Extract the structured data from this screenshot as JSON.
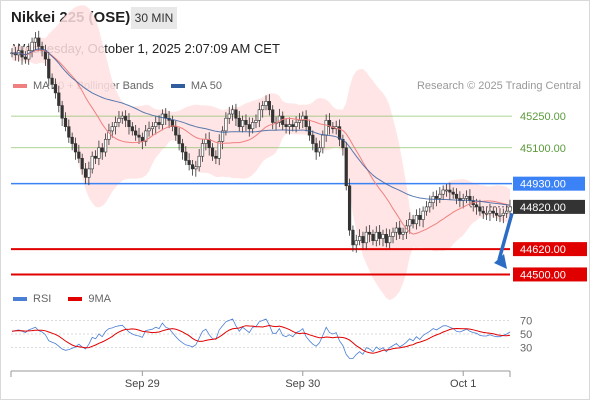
{
  "header": {
    "instrument": "Nikkei 225 (OSE)",
    "timeframe": "30 MIN",
    "datetime": "Wednesday, October 1, 2025 2:07:09 AM CET"
  },
  "legend": {
    "ma20_label": "MA 20 + Bollinger Bands",
    "ma20_color": "#f08080",
    "ma50_label": "MA 50",
    "ma50_color": "#2f5d9e",
    "credit": "Research © 2025 Trading Central"
  },
  "rsi_legend": {
    "rsi_label": "RSI",
    "rsi_color": "#4a7fd6",
    "ma9_label": "9MA",
    "ma9_color": "#e00000"
  },
  "chart_data": {
    "type": "candlestick",
    "y_range": [
      44450,
      45350
    ],
    "x_ticks": [
      {
        "label": "Sep 29",
        "index": 39
      },
      {
        "label": "Sep 30",
        "index": 87
      },
      {
        "label": "Oct 1",
        "index": 135
      }
    ],
    "levels": [
      {
        "value": 45250.0,
        "label": "45250.00",
        "kind": "resistance",
        "color": "#8fc46e"
      },
      {
        "value": 45100.0,
        "label": "45100.00",
        "kind": "resistance",
        "color": "#8fc46e"
      },
      {
        "value": 44930.0,
        "label": "44930.00",
        "kind": "pivot",
        "color": "#3b82f6"
      },
      {
        "value": 44820.0,
        "label": "44820.00",
        "kind": "last",
        "color": "#333333"
      },
      {
        "value": 44620.0,
        "label": "44620.00",
        "kind": "support",
        "color": "#e00000"
      },
      {
        "value": 44500.0,
        "label": "44500.00",
        "kind": "support",
        "color": "#e00000"
      }
    ],
    "close": [
      45550,
      45540,
      45560,
      45530,
      45520,
      45560,
      45600,
      45620,
      45580,
      45560,
      45520,
      45430,
      45400,
      45360,
      45300,
      45240,
      45200,
      45150,
      45120,
      45080,
      45050,
      45000,
      44960,
      45000,
      45060,
      45050,
      45100,
      45080,
      45140,
      45180,
      45200,
      45220,
      45240,
      45250,
      45230,
      45200,
      45180,
      45160,
      45150,
      45130,
      45180,
      45190,
      45200,
      45220,
      45210,
      45260,
      45240,
      45230,
      45200,
      45160,
      45120,
      45080,
      45040,
      45020,
      45000,
      45010,
      45060,
      45120,
      45140,
      45100,
      45060,
      45050,
      45130,
      45180,
      45240,
      45260,
      45280,
      45240,
      45200,
      45230,
      45210,
      45190,
      45220,
      45230,
      45280,
      45300,
      45320,
      45280,
      45220,
      45220,
      45250,
      45210,
      45200,
      45210,
      45200,
      45220,
      45230,
      45250,
      45200,
      45160,
      45120,
      45080,
      45100,
      45160,
      45230,
      45200,
      45190,
      45200,
      45140,
      45100,
      44920,
      44710,
      44640,
      44660,
      44680,
      44650,
      44700,
      44690,
      44660,
      44700,
      44670,
      44690,
      44650,
      44680,
      44700,
      44720,
      44690,
      44700,
      44730,
      44760,
      44740,
      44780,
      44760,
      44800,
      44820,
      44840,
      44870,
      44860,
      44880,
      44900,
      44900,
      44890,
      44880,
      44860,
      44850,
      44860,
      44870,
      44850,
      44830,
      44820,
      44800,
      44790,
      44790,
      44800,
      44790,
      44780,
      44780,
      44790,
      44800,
      44820
    ],
    "ma50": [
      45550,
      45545,
      45550,
      45545,
      45540,
      45548,
      45555,
      45565,
      45568,
      45568,
      45562,
      45548,
      45533,
      45518,
      45500,
      45480,
      45462,
      45445,
      45430,
      45418,
      45405,
      45392,
      45380,
      45370,
      45360,
      45352,
      45345,
      45338,
      45332,
      45328,
      45324,
      45320,
      45316,
      45312,
      45306,
      45300,
      45293,
      45286,
      45278,
      45270,
      45264,
      45259,
      45254,
      45250,
      45246,
      45243,
      45240,
      45237,
      45234,
      45230,
      45226,
      45221,
      45216,
      45210,
      45205,
      45200,
      45196,
      45193,
      45190,
      45186,
      45182,
      45178,
      45176,
      45174,
      45174,
      45175,
      45176,
      45176,
      45176,
      45176,
      45176,
      45175,
      45175,
      45176,
      45178,
      45180,
      45182,
      45183,
      45183,
      45183,
      45184,
      45184,
      45184,
      45183,
      45183,
      45183,
      45183,
      45184,
      45182,
      45180,
      45176,
      45170,
      45165,
      45162,
      45160,
      45158,
      45156,
      45152,
      45146,
      45138,
      45124,
      45104,
      45082,
      45060,
      45040,
      45020,
      45002,
      44986,
      44970,
      44958,
      44948,
      44938,
      44928,
      44920,
      44912,
      44905,
      44898,
      44890,
      44882,
      44876,
      44870,
      44866,
      44862,
      44860,
      44858,
      44857,
      44856,
      44855,
      44855,
      44855,
      44855,
      44854,
      44853,
      44852,
      44852,
      44851,
      44851,
      44850,
      44849,
      44848,
      44846,
      44844,
      44842,
      44840,
      44838,
      44836,
      44834,
      44832,
      44830,
      44828
    ],
    "rsi": [
      54,
      55,
      56,
      54,
      52,
      56,
      58,
      60,
      55,
      53,
      49,
      40,
      38,
      36,
      32,
      28,
      26,
      27,
      29,
      31,
      35,
      31,
      28,
      35,
      45,
      43,
      50,
      46,
      54,
      58,
      59,
      61,
      62,
      63,
      58,
      53,
      50,
      48,
      47,
      45,
      55,
      56,
      57,
      60,
      58,
      66,
      60,
      58,
      52,
      46,
      41,
      37,
      34,
      33,
      31,
      34,
      44,
      54,
      57,
      49,
      43,
      42,
      56,
      62,
      68,
      70,
      72,
      62,
      54,
      60,
      56,
      52,
      60,
      61,
      68,
      70,
      72,
      63,
      51,
      51,
      58,
      48,
      46,
      49,
      46,
      52,
      54,
      58,
      46,
      40,
      35,
      32,
      37,
      48,
      60,
      52,
      50,
      52,
      40,
      33,
      20,
      14,
      14,
      20,
      24,
      20,
      30,
      28,
      24,
      31,
      27,
      30,
      24,
      30,
      33,
      36,
      31,
      34,
      38,
      43,
      40,
      46,
      42,
      48,
      51,
      54,
      58,
      56,
      59,
      62,
      62,
      60,
      58,
      54,
      53,
      55,
      57,
      54,
      52,
      51,
      48,
      47,
      47,
      49,
      47,
      46,
      46,
      48,
      50,
      53
    ]
  }
}
